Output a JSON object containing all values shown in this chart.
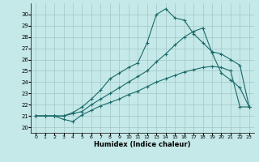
{
  "xlabel": "Humidex (Indice chaleur)",
  "bg_color": "#c5e8e8",
  "grid_color": "#a8cccc",
  "line_color": "#1a6a6a",
  "xlim": [
    -0.5,
    23.5
  ],
  "ylim": [
    19.5,
    31.0
  ],
  "xticks": [
    0,
    1,
    2,
    3,
    4,
    5,
    6,
    7,
    8,
    9,
    10,
    11,
    12,
    13,
    14,
    15,
    16,
    17,
    18,
    19,
    20,
    21,
    22,
    23
  ],
  "yticks": [
    20,
    21,
    22,
    23,
    24,
    25,
    26,
    27,
    28,
    29,
    30
  ],
  "line1_x": [
    0,
    1,
    2,
    3,
    4,
    5,
    6,
    7,
    8,
    9,
    10,
    11,
    12,
    13,
    14,
    15,
    16,
    17,
    18,
    19,
    20,
    21,
    22,
    23
  ],
  "line1_y": [
    21.0,
    21.0,
    21.0,
    20.7,
    20.5,
    21.1,
    21.5,
    21.9,
    22.2,
    22.5,
    22.9,
    23.2,
    23.6,
    24.0,
    24.3,
    24.6,
    24.9,
    25.1,
    25.3,
    25.4,
    25.3,
    25.0,
    21.8,
    21.8
  ],
  "line2_x": [
    0,
    1,
    2,
    3,
    4,
    5,
    6,
    7,
    8,
    9,
    10,
    11,
    12,
    13,
    14,
    15,
    16,
    17,
    18,
    19,
    20,
    21,
    22,
    23
  ],
  "line2_y": [
    21.0,
    21.0,
    21.0,
    21.0,
    21.2,
    21.4,
    22.0,
    22.5,
    23.0,
    23.5,
    24.0,
    24.5,
    25.0,
    25.8,
    26.5,
    27.3,
    28.0,
    28.5,
    28.8,
    26.6,
    24.8,
    24.2,
    23.5,
    21.8
  ],
  "line3_x": [
    0,
    1,
    2,
    3,
    4,
    5,
    6,
    7,
    8,
    9,
    10,
    11,
    12,
    13,
    14,
    15,
    16,
    17,
    18,
    19,
    20,
    21,
    22,
    23
  ],
  "line3_y": [
    21.0,
    21.0,
    21.0,
    21.0,
    21.3,
    21.8,
    22.5,
    23.3,
    24.3,
    24.8,
    25.3,
    25.7,
    27.5,
    30.0,
    30.5,
    29.7,
    29.5,
    28.3,
    27.5,
    26.7,
    26.5,
    26.0,
    25.5,
    21.8
  ]
}
